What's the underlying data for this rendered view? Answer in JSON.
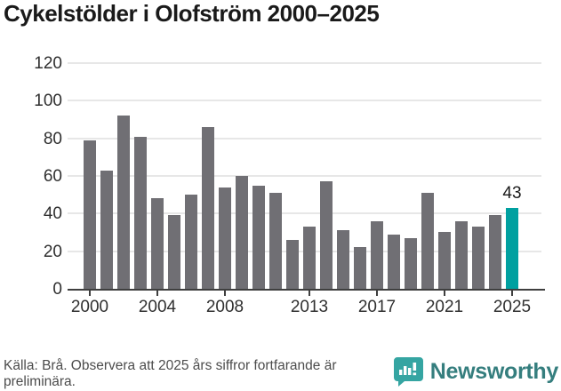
{
  "title": "Cykelstölder i Olofström 2000–2025",
  "source_note": "Källa: Brå. Observera att 2025 års siffror fortfarande är preliminära.",
  "branding": {
    "name": "Newsworthy",
    "icon": "bar-chart-speech-bubble-icon"
  },
  "colors": {
    "bar": "#706f74",
    "highlight": "#00a0a0",
    "grid": "#e7e7e7",
    "axis": "#3f3f3f",
    "title_text": "#1a1a1a",
    "tick_text": "#303030",
    "footer_text": "#4c4c4c",
    "brand_text": "#357e7e",
    "brand_icon": "#35a5a2"
  },
  "chart_data": {
    "type": "bar",
    "title": "Cykelstölder i Olofström 2000–2025",
    "x": [
      2000,
      2001,
      2002,
      2003,
      2004,
      2005,
      2006,
      2007,
      2008,
      2009,
      2010,
      2011,
      2012,
      2013,
      2014,
      2015,
      2016,
      2017,
      2018,
      2019,
      2020,
      2021,
      2022,
      2023,
      2024,
      2025
    ],
    "values": [
      79,
      63,
      92,
      81,
      48,
      39,
      50,
      86,
      54,
      60,
      55,
      51,
      26,
      33,
      57,
      31,
      22,
      36,
      29,
      27,
      51,
      30,
      36,
      33,
      39,
      43
    ],
    "highlight_index": 25,
    "annotation": {
      "x": 2025,
      "label": "43"
    },
    "xticks": [
      2000,
      2004,
      2008,
      2013,
      2017,
      2021,
      2025
    ],
    "yticks": [
      0,
      20,
      40,
      60,
      80,
      100,
      120
    ],
    "ylim": [
      0,
      120
    ],
    "grid": true,
    "legend_position": "none"
  }
}
